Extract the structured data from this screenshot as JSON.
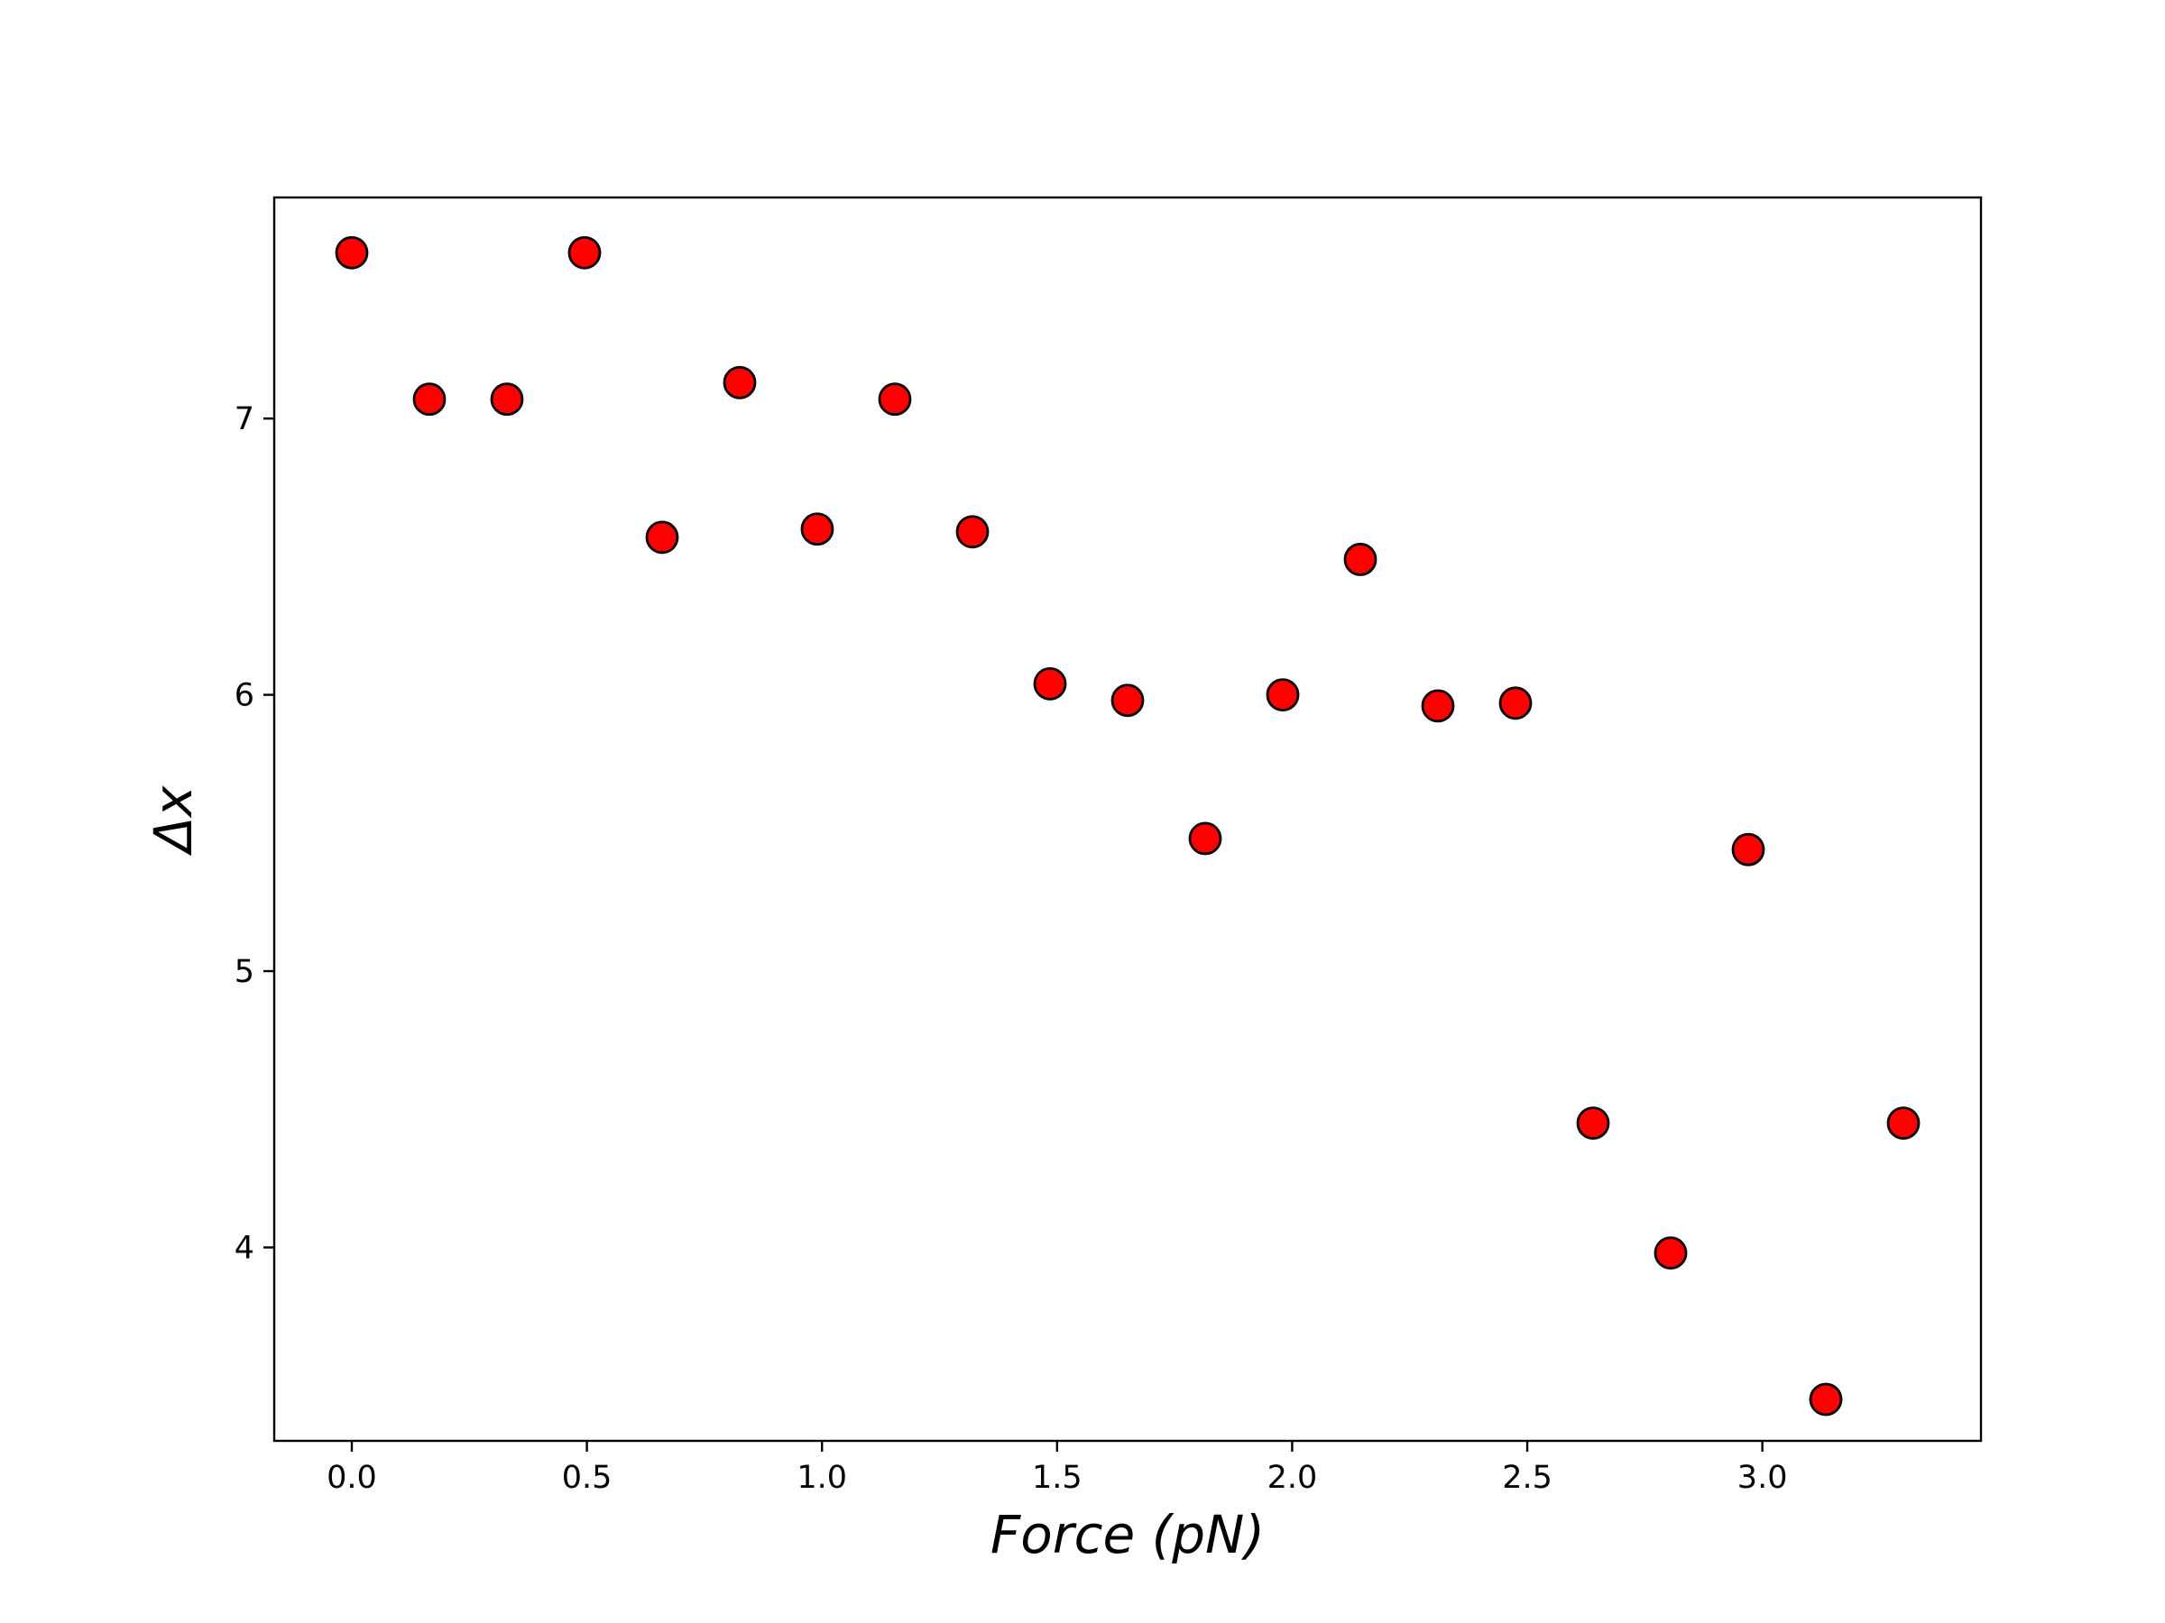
{
  "chart_data": {
    "type": "scatter",
    "xlabel": "Force (pN)",
    "ylabel": "Δx",
    "xlim": [
      -0.165,
      3.465
    ],
    "ylim": [
      3.3,
      7.8
    ],
    "x_ticks": [
      0.0,
      0.5,
      1.0,
      1.5,
      2.0,
      2.5,
      3.0
    ],
    "x_tick_labels": [
      "0.0",
      "0.5",
      "1.0",
      "1.5",
      "2.0",
      "2.5",
      "3.0"
    ],
    "y_ticks": [
      4,
      5,
      6,
      7
    ],
    "y_tick_labels": [
      "4",
      "5",
      "6",
      "7"
    ],
    "grid": false,
    "legend": "none",
    "marker": {
      "fill": "#ff0000",
      "edge": "#000000",
      "shape": "circle"
    },
    "series": [
      {
        "points": [
          {
            "x": 0.0,
            "y": 7.6
          },
          {
            "x": 0.165,
            "y": 7.07
          },
          {
            "x": 0.33,
            "y": 7.07
          },
          {
            "x": 0.495,
            "y": 7.6
          },
          {
            "x": 0.66,
            "y": 6.57
          },
          {
            "x": 0.825,
            "y": 7.13
          },
          {
            "x": 0.99,
            "y": 6.6
          },
          {
            "x": 1.155,
            "y": 7.07
          },
          {
            "x": 1.32,
            "y": 6.59
          },
          {
            "x": 1.485,
            "y": 6.04
          },
          {
            "x": 1.65,
            "y": 5.98
          },
          {
            "x": 1.815,
            "y": 5.48
          },
          {
            "x": 1.98,
            "y": 6.0
          },
          {
            "x": 2.145,
            "y": 6.49
          },
          {
            "x": 2.31,
            "y": 5.96
          },
          {
            "x": 2.475,
            "y": 5.97
          },
          {
            "x": 2.64,
            "y": 4.45
          },
          {
            "x": 2.805,
            "y": 3.98
          },
          {
            "x": 2.97,
            "y": 5.44
          },
          {
            "x": 3.135,
            "y": 3.45
          },
          {
            "x": 3.3,
            "y": 4.45
          }
        ]
      }
    ]
  }
}
